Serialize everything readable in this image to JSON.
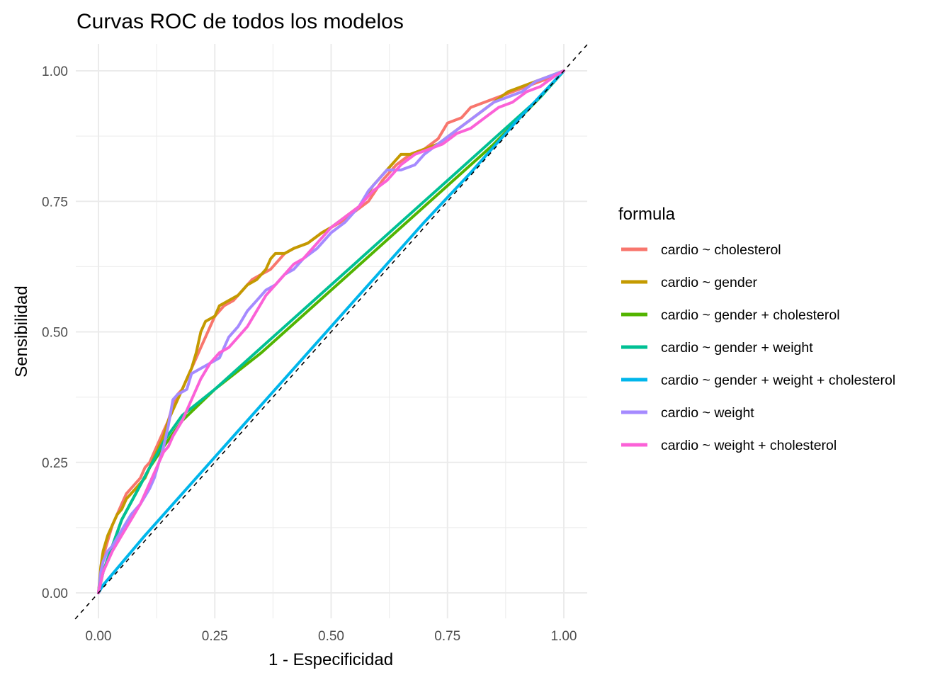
{
  "chart_data": {
    "type": "line",
    "title": "Curvas ROC de todos los modelos",
    "xlabel": "1 - Especificidad",
    "ylabel": "Sensibilidad",
    "xlim": [
      -0.05,
      1.05
    ],
    "ylim": [
      -0.05,
      1.05
    ],
    "x_ticks": [
      0,
      0.25,
      0.5,
      0.75,
      1
    ],
    "x_tick_labels": [
      "0.00",
      "0.25",
      "0.50",
      "0.75",
      "1.00"
    ],
    "y_ticks": [
      0,
      0.25,
      0.5,
      0.75,
      1
    ],
    "y_tick_labels": [
      "0.00",
      "0.25",
      "0.50",
      "0.75",
      "1.00"
    ],
    "grid": true,
    "legend": {
      "title": "formula",
      "position": "right"
    },
    "reference_line": {
      "type": "dashed",
      "slope": 1,
      "intercept": 0,
      "color": "#000000"
    },
    "series": [
      {
        "name": "cardio ~ cholesterol",
        "color": "#F8766D",
        "x": [
          0,
          0.005,
          0.01,
          0.02,
          0.03,
          0.04,
          0.05,
          0.06,
          0.07,
          0.08,
          0.09,
          0.1,
          0.11,
          0.12,
          0.13,
          0.14,
          0.15,
          0.16,
          0.17,
          0.18,
          0.19,
          0.2,
          0.21,
          0.22,
          0.23,
          0.24,
          0.25,
          0.27,
          0.29,
          0.31,
          0.33,
          0.35,
          0.37,
          0.38,
          0.4,
          0.42,
          0.45,
          0.48,
          0.5,
          0.52,
          0.55,
          0.58,
          0.61,
          0.64,
          0.67,
          0.7,
          0.73,
          0.75,
          0.78,
          0.8,
          0.83,
          0.86,
          0.89,
          0.92,
          0.95,
          0.98,
          1.0
        ],
        "y": [
          0,
          0.04,
          0.07,
          0.1,
          0.13,
          0.15,
          0.17,
          0.19,
          0.2,
          0.21,
          0.22,
          0.24,
          0.25,
          0.27,
          0.29,
          0.31,
          0.33,
          0.36,
          0.38,
          0.39,
          0.41,
          0.43,
          0.45,
          0.47,
          0.49,
          0.51,
          0.53,
          0.55,
          0.56,
          0.58,
          0.6,
          0.61,
          0.62,
          0.63,
          0.65,
          0.66,
          0.67,
          0.69,
          0.7,
          0.71,
          0.73,
          0.75,
          0.79,
          0.82,
          0.84,
          0.85,
          0.87,
          0.9,
          0.91,
          0.93,
          0.94,
          0.95,
          0.96,
          0.97,
          0.98,
          0.99,
          1.0
        ]
      },
      {
        "name": "cardio ~ gender",
        "color": "#C49A00",
        "x": [
          0,
          0.005,
          0.01,
          0.02,
          0.03,
          0.04,
          0.05,
          0.06,
          0.07,
          0.08,
          0.09,
          0.1,
          0.11,
          0.12,
          0.13,
          0.14,
          0.15,
          0.16,
          0.17,
          0.18,
          0.19,
          0.2,
          0.21,
          0.22,
          0.23,
          0.25,
          0.26,
          0.28,
          0.3,
          0.32,
          0.34,
          0.36,
          0.37,
          0.38,
          0.4,
          0.42,
          0.45,
          0.48,
          0.5,
          0.53,
          0.56,
          0.59,
          0.62,
          0.65,
          0.67,
          0.7,
          0.73,
          0.76,
          0.79,
          0.82,
          0.85,
          0.88,
          0.91,
          0.94,
          0.97,
          1.0
        ],
        "y": [
          0,
          0.05,
          0.08,
          0.11,
          0.13,
          0.15,
          0.16,
          0.18,
          0.19,
          0.2,
          0.21,
          0.22,
          0.24,
          0.26,
          0.28,
          0.3,
          0.33,
          0.35,
          0.37,
          0.39,
          0.41,
          0.43,
          0.46,
          0.5,
          0.52,
          0.53,
          0.55,
          0.56,
          0.57,
          0.59,
          0.6,
          0.62,
          0.64,
          0.65,
          0.65,
          0.66,
          0.67,
          0.69,
          0.7,
          0.72,
          0.74,
          0.78,
          0.81,
          0.84,
          0.84,
          0.85,
          0.86,
          0.88,
          0.9,
          0.92,
          0.94,
          0.96,
          0.97,
          0.98,
          0.99,
          1.0
        ]
      },
      {
        "name": "cardio ~ gender + cholesterol",
        "color": "#53B400",
        "x": [
          0,
          0.01,
          0.03,
          0.05,
          0.08,
          0.11,
          0.14,
          0.18,
          0.25,
          0.35,
          0.45,
          0.55,
          0.65,
          0.75,
          0.85,
          0.95,
          1.0
        ],
        "y": [
          0,
          0.04,
          0.09,
          0.14,
          0.19,
          0.24,
          0.28,
          0.33,
          0.39,
          0.46,
          0.54,
          0.62,
          0.7,
          0.78,
          0.86,
          0.95,
          1.0
        ]
      },
      {
        "name": "cardio ~ gender + weight",
        "color": "#00C094",
        "x": [
          0,
          0.01,
          0.03,
          0.05,
          0.08,
          0.11,
          0.14,
          0.18,
          0.25,
          0.35,
          0.45,
          0.55,
          0.65,
          0.75,
          0.85,
          0.95,
          1.0
        ],
        "y": [
          0,
          0.04,
          0.09,
          0.14,
          0.19,
          0.24,
          0.29,
          0.34,
          0.39,
          0.47,
          0.55,
          0.63,
          0.71,
          0.79,
          0.87,
          0.95,
          1.0
        ]
      },
      {
        "name": "cardio ~ gender + weight + cholesterol",
        "color": "#00B6EB",
        "x": [
          0,
          0.01,
          0.1,
          0.2,
          0.3,
          0.4,
          0.5,
          0.6,
          0.7,
          0.8,
          0.9,
          1.0
        ],
        "y": [
          0,
          0.015,
          0.11,
          0.21,
          0.31,
          0.41,
          0.51,
          0.61,
          0.71,
          0.805,
          0.905,
          1.0
        ]
      },
      {
        "name": "cardio ~ weight",
        "color": "#A58AFF",
        "x": [
          0,
          0.005,
          0.01,
          0.02,
          0.03,
          0.05,
          0.07,
          0.09,
          0.11,
          0.12,
          0.13,
          0.14,
          0.15,
          0.16,
          0.17,
          0.19,
          0.2,
          0.22,
          0.24,
          0.26,
          0.27,
          0.28,
          0.3,
          0.32,
          0.34,
          0.36,
          0.38,
          0.4,
          0.42,
          0.44,
          0.47,
          0.5,
          0.53,
          0.56,
          0.58,
          0.6,
          0.62,
          0.65,
          0.68,
          0.7,
          0.73,
          0.76,
          0.79,
          0.82,
          0.85,
          0.88,
          0.91,
          0.94,
          0.97,
          1.0
        ],
        "y": [
          0,
          0.04,
          0.06,
          0.08,
          0.09,
          0.12,
          0.15,
          0.17,
          0.2,
          0.22,
          0.25,
          0.28,
          0.32,
          0.37,
          0.38,
          0.39,
          0.42,
          0.43,
          0.44,
          0.45,
          0.47,
          0.49,
          0.51,
          0.54,
          0.56,
          0.58,
          0.59,
          0.61,
          0.62,
          0.64,
          0.66,
          0.69,
          0.71,
          0.74,
          0.77,
          0.79,
          0.81,
          0.81,
          0.82,
          0.84,
          0.86,
          0.88,
          0.9,
          0.92,
          0.94,
          0.95,
          0.96,
          0.98,
          0.99,
          1.0
        ]
      },
      {
        "name": "cardio ~ weight + cholesterol",
        "color": "#FB61D7",
        "x": [
          0,
          0.005,
          0.01,
          0.02,
          0.03,
          0.05,
          0.07,
          0.09,
          0.11,
          0.13,
          0.14,
          0.15,
          0.16,
          0.18,
          0.2,
          0.22,
          0.24,
          0.26,
          0.28,
          0.3,
          0.32,
          0.34,
          0.36,
          0.38,
          0.4,
          0.42,
          0.44,
          0.46,
          0.48,
          0.5,
          0.53,
          0.56,
          0.59,
          0.62,
          0.65,
          0.68,
          0.71,
          0.74,
          0.77,
          0.8,
          0.83,
          0.86,
          0.89,
          0.92,
          0.95,
          0.98,
          1.0
        ],
        "y": [
          0,
          0.02,
          0.04,
          0.06,
          0.08,
          0.11,
          0.14,
          0.17,
          0.21,
          0.25,
          0.27,
          0.28,
          0.3,
          0.33,
          0.37,
          0.41,
          0.44,
          0.46,
          0.47,
          0.49,
          0.51,
          0.54,
          0.57,
          0.59,
          0.61,
          0.63,
          0.64,
          0.66,
          0.68,
          0.7,
          0.72,
          0.74,
          0.77,
          0.79,
          0.82,
          0.84,
          0.85,
          0.86,
          0.88,
          0.89,
          0.91,
          0.93,
          0.94,
          0.96,
          0.97,
          0.99,
          1.0
        ]
      }
    ]
  }
}
